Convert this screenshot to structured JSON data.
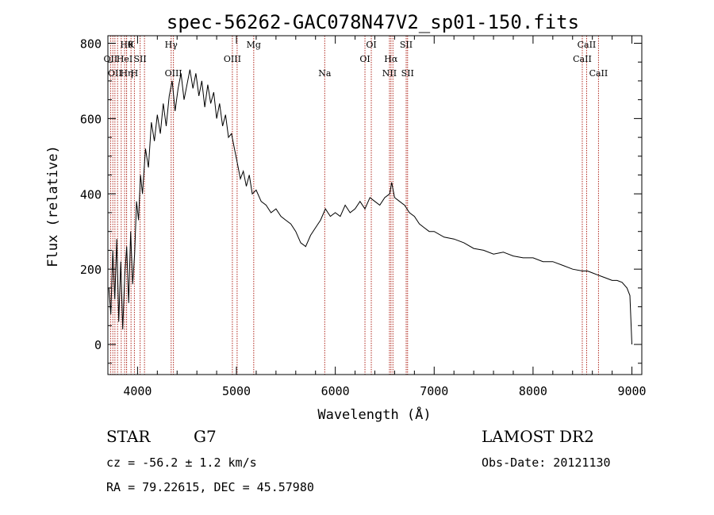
{
  "chart_data": {
    "type": "line",
    "title": "spec-56262-GAC078N47V2_sp01-150.fits",
    "xlabel": "Wavelength (Å)",
    "ylabel": "Flux (relative)",
    "xlim": [
      3700,
      9100
    ],
    "ylim": [
      -80,
      820
    ],
    "xticks": [
      4000,
      5000,
      6000,
      7000,
      8000,
      9000
    ],
    "yticks": [
      0,
      200,
      400,
      600,
      800
    ],
    "series": [
      {
        "x": [
          3710,
          3730,
          3750,
          3770,
          3790,
          3810,
          3830,
          3850,
          3870,
          3890,
          3910,
          3930,
          3950,
          3970,
          3990,
          4010,
          4030,
          4050,
          4080,
          4110,
          4140,
          4170,
          4200,
          4230,
          4260,
          4290,
          4320,
          4350,
          4380,
          4410,
          4440,
          4470,
          4500,
          4530,
          4560,
          4590,
          4620,
          4650,
          4680,
          4710,
          4740,
          4770,
          4800,
          4830,
          4860,
          4890,
          4920,
          4950,
          4980,
          5010,
          5040,
          5070,
          5100,
          5130,
          5160,
          5200,
          5250,
          5300,
          5350,
          5400,
          5450,
          5500,
          5550,
          5600,
          5650,
          5700,
          5750,
          5800,
          5850,
          5900,
          5950,
          6000,
          6050,
          6100,
          6150,
          6200,
          6250,
          6300,
          6350,
          6400,
          6450,
          6500,
          6550,
          6570,
          6600,
          6650,
          6700,
          6750,
          6800,
          6850,
          6900,
          6950,
          7000,
          7100,
          7200,
          7300,
          7400,
          7500,
          7600,
          7700,
          7800,
          7900,
          8000,
          8100,
          8200,
          8300,
          8400,
          8500,
          8550,
          8600,
          8650,
          8700,
          8750,
          8800,
          8850,
          8900,
          8950,
          8980,
          9000
        ],
        "y": [
          150,
          80,
          250,
          120,
          280,
          60,
          220,
          40,
          180,
          260,
          110,
          300,
          160,
          240,
          380,
          330,
          450,
          400,
          520,
          470,
          590,
          540,
          610,
          560,
          640,
          580,
          660,
          700,
          620,
          680,
          720,
          650,
          690,
          730,
          680,
          720,
          660,
          700,
          630,
          690,
          640,
          670,
          600,
          640,
          580,
          610,
          550,
          560,
          520,
          480,
          440,
          460,
          420,
          450,
          400,
          410,
          380,
          370,
          350,
          360,
          340,
          330,
          320,
          300,
          270,
          260,
          290,
          310,
          330,
          360,
          340,
          350,
          340,
          370,
          350,
          360,
          380,
          360,
          390,
          380,
          370,
          390,
          400,
          430,
          390,
          380,
          370,
          350,
          340,
          320,
          310,
          300,
          300,
          285,
          280,
          270,
          255,
          250,
          240,
          245,
          235,
          230,
          230,
          220,
          220,
          210,
          200,
          195,
          195,
          190,
          185,
          180,
          175,
          170,
          170,
          165,
          150,
          130,
          0
        ]
      }
    ],
    "lines": [
      {
        "x": 3727,
        "label": "OII",
        "row": 1
      },
      {
        "x": 3750,
        "label": "",
        "row": 0
      },
      {
        "x": 3771,
        "label": "OII",
        "row": 2
      },
      {
        "x": 3798,
        "label": "",
        "row": 0
      },
      {
        "x": 3835,
        "label": "",
        "row": 0
      },
      {
        "x": 3869,
        "label": "HeI",
        "row": 1
      },
      {
        "x": 3889,
        "label": "Hη",
        "row": 2
      },
      {
        "x": 3889,
        "label": "Hθ",
        "row": 0
      },
      {
        "x": 3934,
        "label": "K",
        "row": 0
      },
      {
        "x": 3968,
        "label": "H",
        "row": 2
      },
      {
        "x": 4026,
        "label": "SII",
        "row": 1
      },
      {
        "x": 4070,
        "label": "",
        "row": 0
      },
      {
        "x": 4340,
        "label": "Hγ",
        "row": 0
      },
      {
        "x": 4363,
        "label": "OIII",
        "row": 2
      },
      {
        "x": 4959,
        "label": "OIII",
        "row": 1
      },
      {
        "x": 5007,
        "label": "",
        "row": 0
      },
      {
        "x": 5175,
        "label": "Mg",
        "row": 0
      },
      {
        "x": 5893,
        "label": "Na",
        "row": 2
      },
      {
        "x": 6300,
        "label": "OI",
        "row": 1
      },
      {
        "x": 6364,
        "label": "OI",
        "row": 0
      },
      {
        "x": 6548,
        "label": "NII",
        "row": 2
      },
      {
        "x": 6563,
        "label": "Hα",
        "row": 1
      },
      {
        "x": 6583,
        "label": "",
        "row": 0
      },
      {
        "x": 6717,
        "label": "SII",
        "row": 0
      },
      {
        "x": 6731,
        "label": "SII",
        "row": 2
      },
      {
        "x": 8498,
        "label": "CaII",
        "row": 1
      },
      {
        "x": 8542,
        "label": "CaII",
        "row": 0
      },
      {
        "x": 8662,
        "label": "CaII",
        "row": 2
      }
    ]
  },
  "info": {
    "class_label": "STAR",
    "subclass": "G7",
    "redshift": "cz = -56.2 ± 1.2 km/s",
    "coords": "RA =  79.22615, DEC =  45.57980",
    "survey": "LAMOST DR2",
    "obs_date": "Obs-Date: 20121130"
  },
  "colors": {
    "spectrum": "#000000",
    "line_marker": "#b0281e",
    "axis": "#000000"
  }
}
